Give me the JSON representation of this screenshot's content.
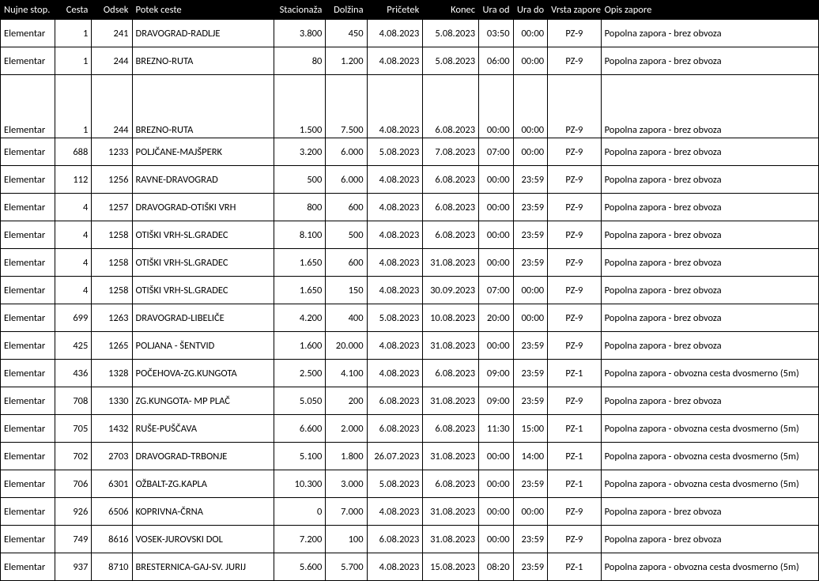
{
  "headers": [
    "Nujne stop.",
    "Cesta",
    "Odsek",
    "Potek ceste",
    "Stacionaža",
    "Dolžina",
    "Pričetek",
    "Konec",
    "Ura od",
    "Ura do",
    "Vrsta zapore",
    "Opis zapore"
  ],
  "rows": [
    {
      "c0": "Elementar",
      "c1": "1",
      "c2": "241",
      "c3": "DRAVOGRAD-RADLJE",
      "c4": "3.800",
      "c5": "450",
      "c6": "4.08.2023",
      "c7": "5.08.2023",
      "c8": "03:50",
      "c9": "00:00",
      "c10": "PZ-9",
      "c11": "Popolna zapora - brez obvoza",
      "tall": false
    },
    {
      "c0": "Elementar",
      "c1": "1",
      "c2": "244",
      "c3": "BREZNO-RUTA",
      "c4": "80",
      "c5": "1.200",
      "c6": "4.08.2023",
      "c7": "5.08.2023",
      "c8": "06:00",
      "c9": "00:00",
      "c10": "PZ-9",
      "c11": "Popolna zapora - brez obvoza",
      "tall": false
    },
    {
      "c0": "Elementar",
      "c1": "1",
      "c2": "244",
      "c3": "BREZNO-RUTA",
      "c4": "1.500",
      "c5": "7.500",
      "c6": "4.08.2023",
      "c7": "6.08.2023",
      "c8": "00:00",
      "c9": "00:00",
      "c10": "PZ-9",
      "c11": "Popolna zapora - brez obvoza",
      "tall": true
    },
    {
      "c0": "Elementar",
      "c1": "688",
      "c2": "1233",
      "c3": "POLJČANE-MAJŠPERK",
      "c4": "3.200",
      "c5": "6.000",
      "c6": "5.08.2023",
      "c7": "7.08.2023",
      "c8": "07:00",
      "c9": "00:00",
      "c10": "PZ-9",
      "c11": "Popolna zapora - brez obvoza",
      "tall": false
    },
    {
      "c0": "Elementar",
      "c1": "112",
      "c2": "1256",
      "c3": "RAVNE-DRAVOGRAD",
      "c4": "500",
      "c5": "6.000",
      "c6": "4.08.2023",
      "c7": "6.08.2023",
      "c8": "00:00",
      "c9": "23:59",
      "c10": "PZ-9",
      "c11": "Popolna zapora - brez obvoza",
      "tall": false
    },
    {
      "c0": "Elementar",
      "c1": "4",
      "c2": "1257",
      "c3": "DRAVOGRAD-OTIŠKI VRH",
      "c4": "800",
      "c5": "600",
      "c6": "4.08.2023",
      "c7": "6.08.2023",
      "c8": "00:00",
      "c9": "23:59",
      "c10": "PZ-9",
      "c11": "Popolna zapora - brez obvoza",
      "tall": false
    },
    {
      "c0": "Elementar",
      "c1": "4",
      "c2": "1258",
      "c3": "OTIŠKI VRH-SL.GRADEC",
      "c4": "8.100",
      "c5": "500",
      "c6": "4.08.2023",
      "c7": "6.08.2023",
      "c8": "00:00",
      "c9": "23:59",
      "c10": "PZ-9",
      "c11": "Popolna zapora - brez obvoza",
      "tall": false
    },
    {
      "c0": "Elementar",
      "c1": "4",
      "c2": "1258",
      "c3": "OTIŠKI VRH-SL.GRADEC",
      "c4": "1.650",
      "c5": "600",
      "c6": "4.08.2023",
      "c7": "31.08.2023",
      "c8": "00:00",
      "c9": "23:59",
      "c10": "PZ-9",
      "c11": "Popolna zapora - brez obvoza",
      "tall": false
    },
    {
      "c0": "Elementar",
      "c1": "4",
      "c2": "1258",
      "c3": "OTIŠKI VRH-SL.GRADEC",
      "c4": "1.650",
      "c5": "150",
      "c6": "4.08.2023",
      "c7": "30.09.2023",
      "c8": "07:00",
      "c9": "00:00",
      "c10": "PZ-9",
      "c11": "Popolna zapora - brez obvoza",
      "tall": false
    },
    {
      "c0": "Elementar",
      "c1": "699",
      "c2": "1263",
      "c3": "DRAVOGRAD-LIBELIČE",
      "c4": "4.200",
      "c5": "400",
      "c6": "5.08.2023",
      "c7": "10.08.2023",
      "c8": "20:00",
      "c9": "00:00",
      "c10": "PZ-9",
      "c11": "Popolna zapora - brez obvoza",
      "tall": false
    },
    {
      "c0": "Elementar",
      "c1": "425",
      "c2": "1265",
      "c3": "POLJANA - ŠENTVID",
      "c4": "1.600",
      "c5": "20.000",
      "c6": "4.08.2023",
      "c7": "31.08.2023",
      "c8": "00:00",
      "c9": "23:59",
      "c10": "PZ-9",
      "c11": "Popolna zapora - brez obvoza",
      "tall": false
    },
    {
      "c0": "Elementar",
      "c1": "436",
      "c2": "1328",
      "c3": "POČEHOVA-ZG.KUNGOTA",
      "c4": "2.500",
      "c5": "4.100",
      "c6": "4.08.2023",
      "c7": "6.08.2023",
      "c8": "09:00",
      "c9": "23:59",
      "c10": "PZ-1",
      "c11": "Popolna zapora - obvozna cesta dvosmerno (5m)",
      "tall": false
    },
    {
      "c0": "Elementar",
      "c1": "708",
      "c2": "1330",
      "c3": "ZG.KUNGOTA- MP PLAČ",
      "c4": "5.050",
      "c5": "200",
      "c6": "6.08.2023",
      "c7": "31.08.2023",
      "c8": "09:00",
      "c9": "23:59",
      "c10": "PZ-9",
      "c11": "Popolna zapora - brez obvoza",
      "tall": false
    },
    {
      "c0": "Elementar",
      "c1": "705",
      "c2": "1432",
      "c3": "RUŠE-PUŠČAVA",
      "c4": "6.600",
      "c5": "2.000",
      "c6": "6.08.2023",
      "c7": "6.08.2023",
      "c8": "11:30",
      "c9": "15:00",
      "c10": "PZ-1",
      "c11": "Popolna zapora - obvozna cesta dvosmerno (5m)",
      "tall": false
    },
    {
      "c0": "Elementar",
      "c1": "702",
      "c2": "2703",
      "c3": "DRAVOGRAD-TRBONJE",
      "c4": "5.100",
      "c5": "1.800",
      "c6": "26.07.2023",
      "c7": "31.08.2023",
      "c8": "00:00",
      "c9": "14:00",
      "c10": "PZ-1",
      "c11": "Popolna zapora - obvozna cesta dvosmerno (5m)",
      "tall": false
    },
    {
      "c0": "Elementar",
      "c1": "706",
      "c2": "6301",
      "c3": "OŽBALT-ZG.KAPLA",
      "c4": "10.300",
      "c5": "3.000",
      "c6": "5.08.2023",
      "c7": "6.08.2023",
      "c8": "00:00",
      "c9": "23:59",
      "c10": "PZ-1",
      "c11": "Popolna zapora - obvozna cesta dvosmerno (5m)",
      "tall": false
    },
    {
      "c0": "Elementar",
      "c1": "926",
      "c2": "6506",
      "c3": "KOPRIVNA-ČRNA",
      "c4": "0",
      "c5": "7.000",
      "c6": "4.08.2023",
      "c7": "31.08.2023",
      "c8": "00:00",
      "c9": "00:00",
      "c10": "PZ-9",
      "c11": "Popolna zapora - brez obvoza",
      "tall": false
    },
    {
      "c0": "Elementar",
      "c1": "749",
      "c2": "8616",
      "c3": "VOSEK-JUROVSKI DOL",
      "c4": "7.200",
      "c5": "100",
      "c6": "6.08.2023",
      "c7": "31.08.2023",
      "c8": "00:00",
      "c9": "23:59",
      "c10": "PZ-9",
      "c11": "Popolna zapora - brez obvoza",
      "tall": false
    },
    {
      "c0": "Elementar",
      "c1": "937",
      "c2": "8710",
      "c3": "BRESTERNICA-GAJ-SV. JURIJ",
      "c4": "5.600",
      "c5": "5.700",
      "c6": "4.08.2023",
      "c7": "15.08.2023",
      "c8": "08:20",
      "c9": "23:59",
      "c10": "PZ-1",
      "c11": "Popolna zapora - obvozna cesta dvosmerno (5m)",
      "tall": false
    }
  ]
}
